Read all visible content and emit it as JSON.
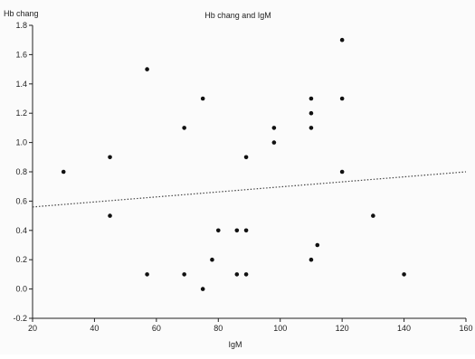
{
  "chart_data": {
    "type": "scatter",
    "title": "Hb chang and IgM",
    "xlabel": "IgM",
    "ylabel": "Hb chang",
    "xlim": [
      20,
      160
    ],
    "ylim": [
      -0.2,
      1.8
    ],
    "x_ticks": [
      20,
      40,
      60,
      80,
      100,
      120,
      140,
      160
    ],
    "y_ticks": [
      -0.2,
      0.0,
      0.2,
      0.4,
      0.6,
      0.8,
      1.0,
      1.2,
      1.4,
      1.6,
      1.8
    ],
    "x_tick_labels": [
      "20",
      "40",
      "60",
      "80",
      "100",
      "120",
      "140",
      "160"
    ],
    "y_tick_labels": [
      "-0.2",
      "0.0",
      "0.2",
      "0.4",
      "0.6",
      "0.8",
      "1.0",
      "1.2",
      "1.4",
      "1.6",
      "1.8"
    ],
    "grid": false,
    "series": [
      {
        "points": [
          [
            30,
            0.8
          ],
          [
            45,
            0.9
          ],
          [
            45,
            0.5
          ],
          [
            57,
            1.5
          ],
          [
            57,
            0.1
          ],
          [
            69,
            0.1
          ],
          [
            69,
            1.1
          ],
          [
            75,
            1.3
          ],
          [
            75,
            0.0
          ],
          [
            78,
            0.2
          ],
          [
            80,
            0.4
          ],
          [
            86,
            0.4
          ],
          [
            86,
            0.1
          ],
          [
            89,
            0.9
          ],
          [
            89,
            0.4
          ],
          [
            89,
            0.1
          ],
          [
            98,
            1.1
          ],
          [
            98,
            1.0
          ],
          [
            110,
            1.3
          ],
          [
            110,
            1.2
          ],
          [
            110,
            1.1
          ],
          [
            110,
            0.2
          ],
          [
            112,
            0.3
          ],
          [
            120,
            1.7
          ],
          [
            120,
            1.3
          ],
          [
            120,
            0.8
          ],
          [
            130,
            0.5
          ],
          [
            140,
            0.1
          ]
        ]
      }
    ],
    "trendline": {
      "style": "dotted",
      "x": [
        20,
        160
      ],
      "y": [
        0.56,
        0.8
      ]
    },
    "colors": {
      "points": "#111111",
      "axis": "#222222",
      "trendline": "#444444"
    }
  }
}
